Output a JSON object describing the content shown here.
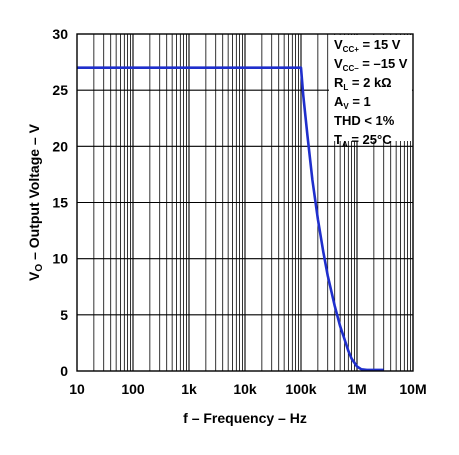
{
  "chart_data": {
    "type": "line",
    "x_scale": "log",
    "xlim": [
      10,
      10000000
    ],
    "ylim": [
      0,
      30
    ],
    "grid": true,
    "xlabel": "f – Frequency – Hz",
    "ylabel": {
      "main": "V",
      "sub": "O",
      "rest": " – Output Voltage – V"
    },
    "x_ticks": [
      {
        "value": 10,
        "label": "10"
      },
      {
        "value": 100,
        "label": "100"
      },
      {
        "value": 1000,
        "label": "1k"
      },
      {
        "value": 10000,
        "label": "10k"
      },
      {
        "value": 100000,
        "label": "100k"
      },
      {
        "value": 1000000,
        "label": "1M"
      },
      {
        "value": 10000000,
        "label": "10M"
      }
    ],
    "y_ticks": [
      {
        "value": 0,
        "label": "0"
      },
      {
        "value": 5,
        "label": "5"
      },
      {
        "value": 10,
        "label": "10"
      },
      {
        "value": 15,
        "label": "15"
      },
      {
        "value": 20,
        "label": "20"
      },
      {
        "value": 25,
        "label": "25"
      },
      {
        "value": 30,
        "label": "30"
      }
    ],
    "conditions": [
      {
        "main": "V",
        "sub": "CC+",
        "rest": " = 15 V"
      },
      {
        "main": "V",
        "sub": "CC–",
        "rest": " = –15 V"
      },
      {
        "main": "R",
        "sub": "L",
        "rest": " = 2 kΩ"
      },
      {
        "main": "A",
        "sub": "V",
        "rest": " = 1"
      },
      {
        "main": "THD < 1%",
        "sub": "",
        "rest": ""
      },
      {
        "main": "T",
        "sub": "A",
        "rest": " = 25°C"
      }
    ],
    "series": [
      {
        "color": "#1f2fcc",
        "x": [
          10,
          100000,
          110000,
          130000,
          160000,
          200000,
          250000,
          300000,
          400000,
          500000,
          600000,
          700000,
          800000,
          1000000,
          1200000,
          1500000,
          2000000,
          3000000
        ],
        "y": [
          27,
          27,
          24.5,
          21.0,
          17.0,
          13.5,
          10.6,
          8.5,
          5.8,
          4.0,
          2.8,
          1.8,
          1.1,
          0.4,
          0.15,
          0.1,
          0.1,
          0.1
        ]
      }
    ]
  }
}
